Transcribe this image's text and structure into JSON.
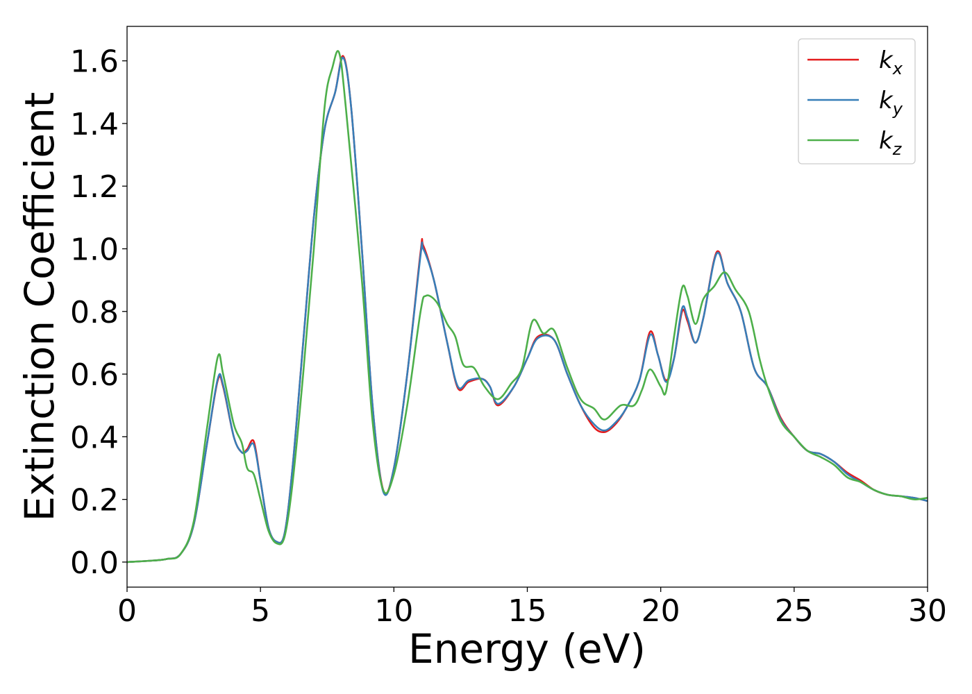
{
  "chart_data": {
    "type": "line",
    "title": "",
    "xlabel": "Energy (eV)",
    "ylabel": "Extinction Coefficient",
    "xlim": [
      0,
      30
    ],
    "ylim": [
      -0.08,
      1.71
    ],
    "xticks": [
      0,
      5,
      10,
      15,
      20,
      25,
      30
    ],
    "xtick_labels": [
      "0",
      "5",
      "10",
      "15",
      "20",
      "25",
      "30"
    ],
    "yticks": [
      0.0,
      0.2,
      0.4,
      0.6,
      0.8,
      1.0,
      1.2,
      1.4,
      1.6
    ],
    "ytick_labels": [
      "0.0",
      "0.2",
      "0.4",
      "0.6",
      "0.8",
      "1.0",
      "1.2",
      "1.4",
      "1.6"
    ],
    "grid": false,
    "legend_position": "top-right",
    "series": [
      {
        "name": "k_x",
        "label_main": "k",
        "label_sub": "x",
        "color": "#e41a1c",
        "points": [
          [
            0,
            0
          ],
          [
            1,
            0.005
          ],
          [
            1.5,
            0.01
          ],
          [
            2,
            0.025
          ],
          [
            2.5,
            0.12
          ],
          [
            3,
            0.38
          ],
          [
            3.4,
            0.58
          ],
          [
            3.6,
            0.56
          ],
          [
            4,
            0.4
          ],
          [
            4.3,
            0.35
          ],
          [
            4.5,
            0.36
          ],
          [
            4.75,
            0.385
          ],
          [
            5,
            0.26
          ],
          [
            5.3,
            0.11
          ],
          [
            5.6,
            0.065
          ],
          [
            5.9,
            0.09
          ],
          [
            6.2,
            0.3
          ],
          [
            6.6,
            0.7
          ],
          [
            7,
            1.1
          ],
          [
            7.4,
            1.38
          ],
          [
            7.8,
            1.5
          ],
          [
            8.1,
            1.615
          ],
          [
            8.4,
            1.45
          ],
          [
            8.8,
            1.0
          ],
          [
            9.2,
            0.5
          ],
          [
            9.6,
            0.23
          ],
          [
            10,
            0.3
          ],
          [
            10.5,
            0.6
          ],
          [
            11,
            0.99
          ],
          [
            11.1,
            1.01
          ],
          [
            11.5,
            0.9
          ],
          [
            12,
            0.7
          ],
          [
            12.4,
            0.555
          ],
          [
            12.8,
            0.575
          ],
          [
            13.3,
            0.585
          ],
          [
            13.6,
            0.56
          ],
          [
            13.9,
            0.5
          ],
          [
            14.5,
            0.56
          ],
          [
            15,
            0.65
          ],
          [
            15.4,
            0.72
          ],
          [
            16,
            0.71
          ],
          [
            16.5,
            0.6
          ],
          [
            17,
            0.5
          ],
          [
            17.5,
            0.43
          ],
          [
            17.9,
            0.415
          ],
          [
            18.3,
            0.44
          ],
          [
            18.7,
            0.49
          ],
          [
            19.2,
            0.58
          ],
          [
            19.6,
            0.735
          ],
          [
            19.9,
            0.66
          ],
          [
            20.2,
            0.58
          ],
          [
            20.5,
            0.65
          ],
          [
            20.8,
            0.8
          ],
          [
            21,
            0.77
          ],
          [
            21.3,
            0.7
          ],
          [
            21.6,
            0.78
          ],
          [
            22.1,
            0.99
          ],
          [
            22.5,
            0.89
          ],
          [
            23,
            0.8
          ],
          [
            23.5,
            0.62
          ],
          [
            24,
            0.56
          ],
          [
            24.5,
            0.46
          ],
          [
            25,
            0.4
          ],
          [
            25.5,
            0.355
          ],
          [
            26,
            0.345
          ],
          [
            26.5,
            0.32
          ],
          [
            27,
            0.285
          ],
          [
            27.5,
            0.26
          ],
          [
            28,
            0.23
          ],
          [
            28.5,
            0.215
          ],
          [
            29,
            0.21
          ],
          [
            29.5,
            0.205
          ],
          [
            30,
            0.195
          ]
        ]
      },
      {
        "name": "k_y",
        "label_main": "k",
        "label_sub": "y",
        "color": "#377eb8",
        "points": [
          [
            0,
            0
          ],
          [
            1,
            0.005
          ],
          [
            1.5,
            0.01
          ],
          [
            2,
            0.025
          ],
          [
            2.5,
            0.12
          ],
          [
            3,
            0.38
          ],
          [
            3.4,
            0.585
          ],
          [
            3.6,
            0.565
          ],
          [
            4,
            0.4
          ],
          [
            4.3,
            0.35
          ],
          [
            4.5,
            0.355
          ],
          [
            4.75,
            0.375
          ],
          [
            5,
            0.26
          ],
          [
            5.3,
            0.11
          ],
          [
            5.6,
            0.065
          ],
          [
            5.9,
            0.09
          ],
          [
            6.2,
            0.3
          ],
          [
            6.6,
            0.7
          ],
          [
            7,
            1.1
          ],
          [
            7.4,
            1.38
          ],
          [
            7.8,
            1.5
          ],
          [
            8.1,
            1.61
          ],
          [
            8.4,
            1.45
          ],
          [
            8.8,
            1.0
          ],
          [
            9.2,
            0.5
          ],
          [
            9.6,
            0.225
          ],
          [
            10,
            0.3
          ],
          [
            10.5,
            0.6
          ],
          [
            11,
            0.98
          ],
          [
            11.1,
            1.0
          ],
          [
            11.5,
            0.9
          ],
          [
            12,
            0.7
          ],
          [
            12.4,
            0.56
          ],
          [
            12.8,
            0.58
          ],
          [
            13.3,
            0.585
          ],
          [
            13.6,
            0.56
          ],
          [
            13.9,
            0.505
          ],
          [
            14.5,
            0.56
          ],
          [
            15,
            0.65
          ],
          [
            15.4,
            0.715
          ],
          [
            16,
            0.71
          ],
          [
            16.5,
            0.6
          ],
          [
            17,
            0.5
          ],
          [
            17.5,
            0.44
          ],
          [
            17.9,
            0.42
          ],
          [
            18.3,
            0.445
          ],
          [
            18.7,
            0.49
          ],
          [
            19.2,
            0.58
          ],
          [
            19.6,
            0.725
          ],
          [
            19.9,
            0.66
          ],
          [
            20.2,
            0.575
          ],
          [
            20.5,
            0.65
          ],
          [
            20.8,
            0.81
          ],
          [
            21,
            0.78
          ],
          [
            21.3,
            0.7
          ],
          [
            21.6,
            0.78
          ],
          [
            22.1,
            0.985
          ],
          [
            22.5,
            0.89
          ],
          [
            23,
            0.8
          ],
          [
            23.5,
            0.62
          ],
          [
            24,
            0.56
          ],
          [
            24.5,
            0.455
          ],
          [
            25,
            0.4
          ],
          [
            25.5,
            0.355
          ],
          [
            26,
            0.345
          ],
          [
            26.5,
            0.32
          ],
          [
            27,
            0.28
          ],
          [
            27.5,
            0.255
          ],
          [
            28,
            0.23
          ],
          [
            28.5,
            0.215
          ],
          [
            29,
            0.21
          ],
          [
            29.5,
            0.205
          ],
          [
            30,
            0.195
          ]
        ]
      },
      {
        "name": "k_z",
        "label_main": "k",
        "label_sub": "z",
        "color": "#4daf4a",
        "points": [
          [
            0,
            0
          ],
          [
            1,
            0.005
          ],
          [
            1.5,
            0.01
          ],
          [
            2,
            0.025
          ],
          [
            2.5,
            0.13
          ],
          [
            3,
            0.43
          ],
          [
            3.4,
            0.655
          ],
          [
            3.6,
            0.6
          ],
          [
            4,
            0.44
          ],
          [
            4.3,
            0.38
          ],
          [
            4.5,
            0.3
          ],
          [
            4.75,
            0.28
          ],
          [
            5,
            0.2
          ],
          [
            5.3,
            0.1
          ],
          [
            5.6,
            0.06
          ],
          [
            5.9,
            0.08
          ],
          [
            6.2,
            0.25
          ],
          [
            6.6,
            0.6
          ],
          [
            7,
            1.0
          ],
          [
            7.4,
            1.45
          ],
          [
            7.7,
            1.58
          ],
          [
            7.95,
            1.625
          ],
          [
            8.2,
            1.45
          ],
          [
            8.8,
            0.9
          ],
          [
            9.2,
            0.45
          ],
          [
            9.6,
            0.23
          ],
          [
            10,
            0.28
          ],
          [
            10.5,
            0.5
          ],
          [
            11,
            0.8
          ],
          [
            11.2,
            0.85
          ],
          [
            11.6,
            0.83
          ],
          [
            12,
            0.76
          ],
          [
            12.3,
            0.72
          ],
          [
            12.6,
            0.63
          ],
          [
            13,
            0.62
          ],
          [
            13.4,
            0.56
          ],
          [
            13.9,
            0.52
          ],
          [
            14.4,
            0.57
          ],
          [
            14.8,
            0.62
          ],
          [
            15.2,
            0.77
          ],
          [
            15.6,
            0.73
          ],
          [
            16,
            0.74
          ],
          [
            16.5,
            0.62
          ],
          [
            17,
            0.52
          ],
          [
            17.5,
            0.49
          ],
          [
            17.9,
            0.455
          ],
          [
            18.5,
            0.5
          ],
          [
            19,
            0.5
          ],
          [
            19.3,
            0.55
          ],
          [
            19.6,
            0.615
          ],
          [
            20,
            0.56
          ],
          [
            20.2,
            0.545
          ],
          [
            20.5,
            0.72
          ],
          [
            20.8,
            0.875
          ],
          [
            21,
            0.85
          ],
          [
            21.3,
            0.76
          ],
          [
            21.6,
            0.84
          ],
          [
            22,
            0.88
          ],
          [
            22.4,
            0.925
          ],
          [
            22.8,
            0.87
          ],
          [
            23.3,
            0.8
          ],
          [
            23.7,
            0.65
          ],
          [
            24,
            0.56
          ],
          [
            24.5,
            0.45
          ],
          [
            25,
            0.4
          ],
          [
            25.5,
            0.355
          ],
          [
            26,
            0.335
          ],
          [
            26.5,
            0.31
          ],
          [
            27,
            0.27
          ],
          [
            27.5,
            0.255
          ],
          [
            28,
            0.23
          ],
          [
            28.5,
            0.215
          ],
          [
            29,
            0.21
          ],
          [
            29.5,
            0.2
          ],
          [
            30,
            0.205
          ]
        ]
      }
    ]
  }
}
